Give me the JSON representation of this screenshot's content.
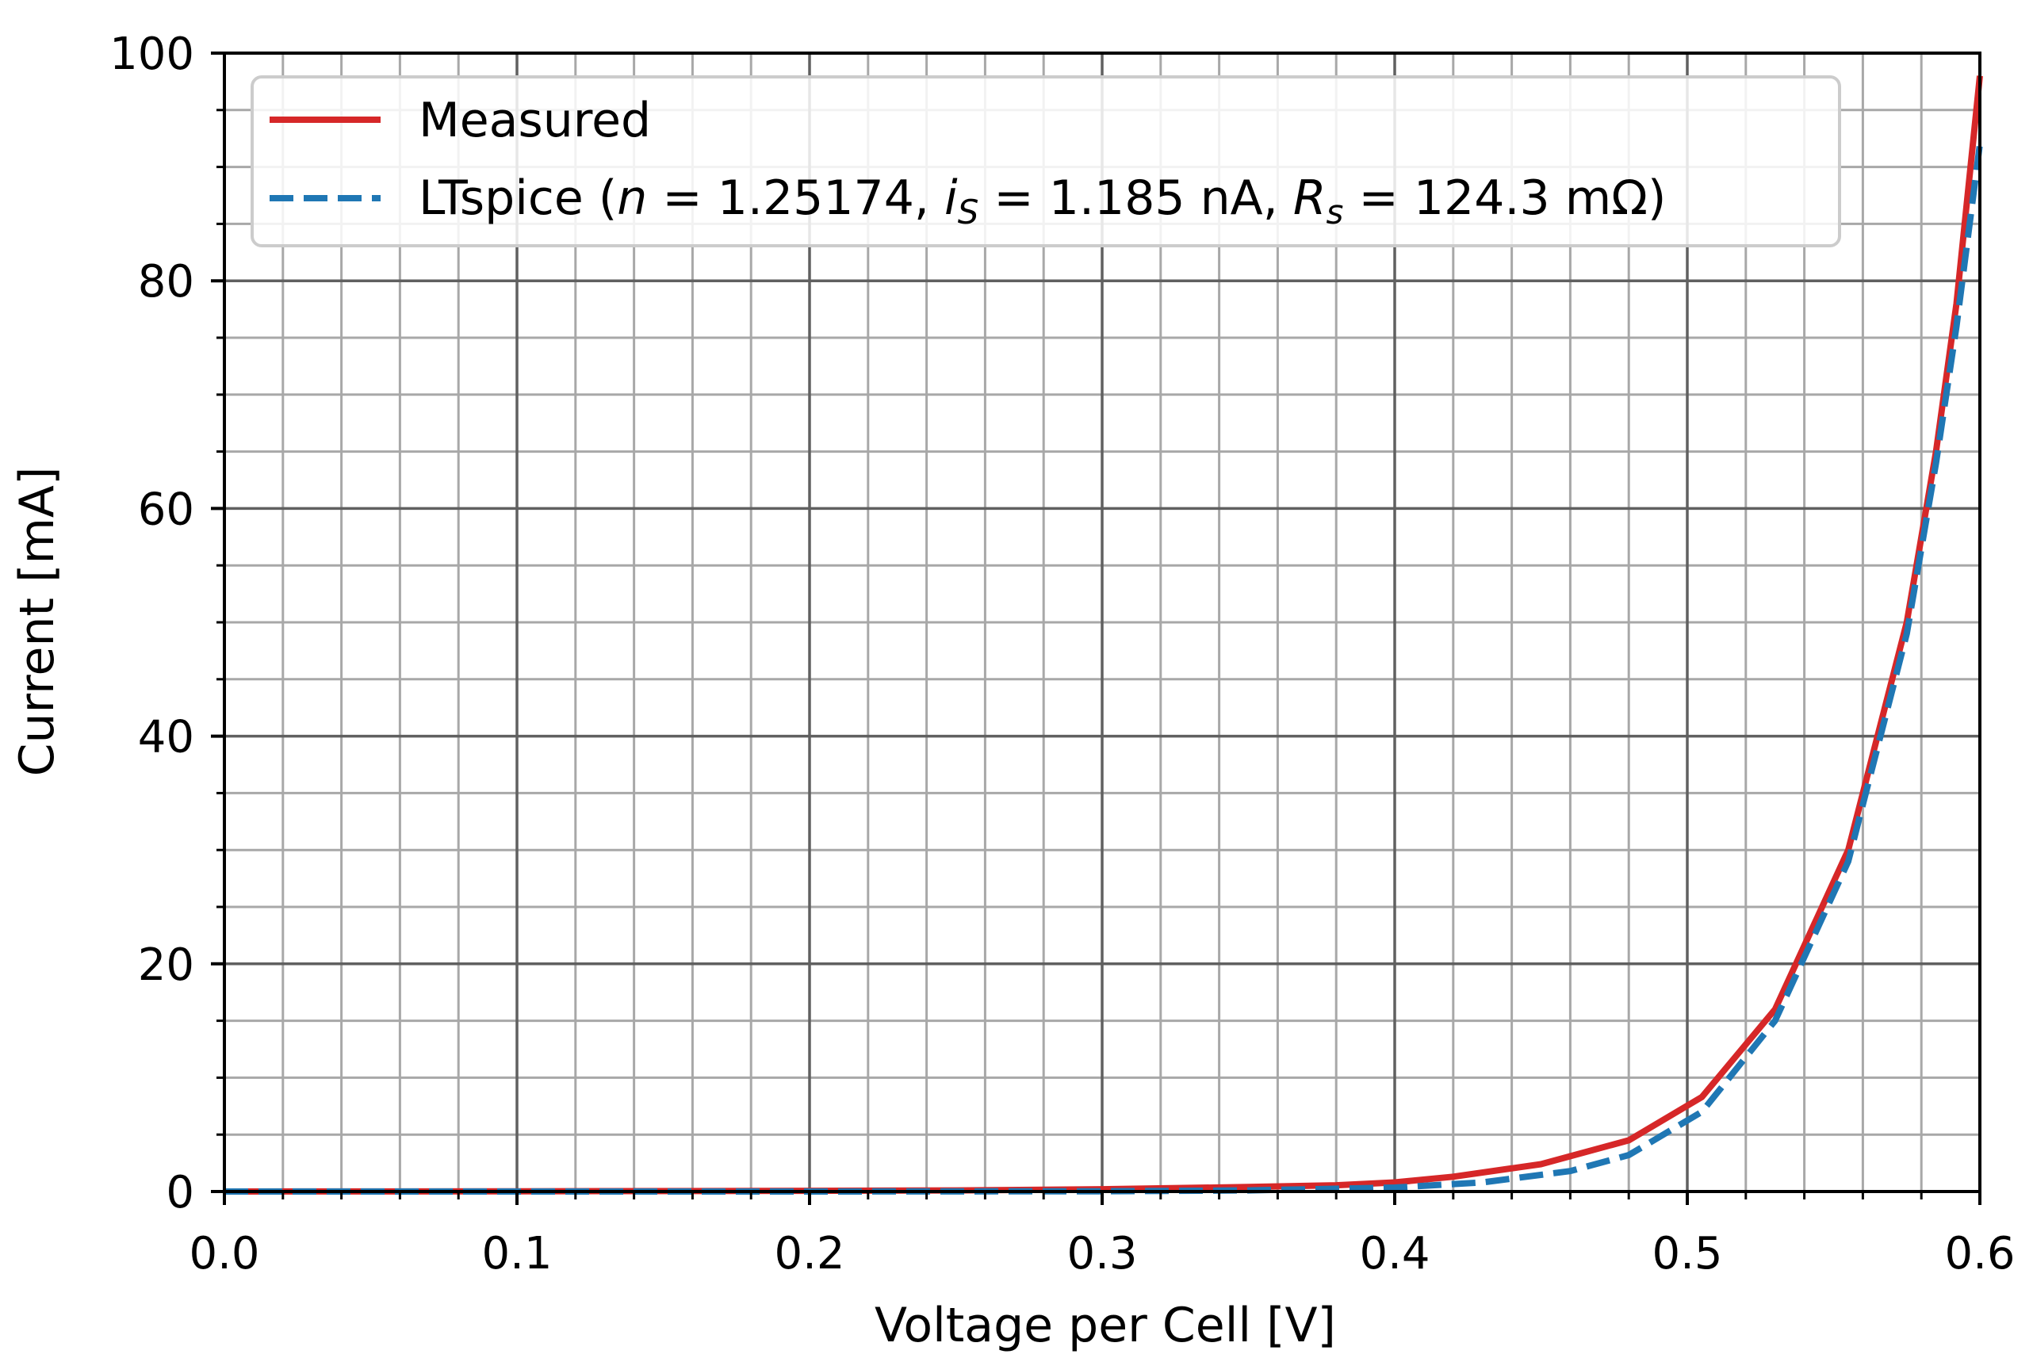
{
  "chart_data": {
    "type": "line",
    "xlabel": "Voltage per Cell [V]",
    "ylabel": "Current [mA]",
    "xlim": [
      0.0,
      0.6
    ],
    "ylim": [
      0,
      100
    ],
    "x_ticks": [
      "0.0",
      "0.1",
      "0.2",
      "0.3",
      "0.4",
      "0.5",
      "0.6"
    ],
    "y_ticks": [
      "0",
      "20",
      "40",
      "60",
      "80",
      "100"
    ],
    "grid": "major and minor",
    "legend_position": "top-left",
    "legend": {
      "measured": "Measured",
      "ltspice_prefix": "LTspice (",
      "n_symbol": "n",
      "n_value": " = 1.25174, ",
      "is_symbol": "i",
      "is_subscript": "S",
      "is_value": " = 1.185 nA, ",
      "rs_symbol": "R",
      "rs_subscript": "s",
      "rs_value": " = 124.3 mΩ)"
    },
    "series": [
      {
        "name": "Measured",
        "color": "#d62728",
        "style": "solid",
        "points": [
          [
            0.0,
            0.0
          ],
          [
            0.1,
            0.02
          ],
          [
            0.2,
            0.06
          ],
          [
            0.25,
            0.1
          ],
          [
            0.3,
            0.2
          ],
          [
            0.35,
            0.4
          ],
          [
            0.38,
            0.55
          ],
          [
            0.4,
            0.8
          ],
          [
            0.42,
            1.3
          ],
          [
            0.45,
            2.4
          ],
          [
            0.48,
            4.5
          ],
          [
            0.505,
            8.3
          ],
          [
            0.53,
            16.0
          ],
          [
            0.555,
            30.0
          ],
          [
            0.575,
            50.0
          ],
          [
            0.585,
            65.0
          ],
          [
            0.592,
            78.0
          ],
          [
            0.6,
            98.0
          ]
        ]
      },
      {
        "name": "LTspice",
        "color": "#1f77b4",
        "style": "dashed",
        "points": [
          [
            0.0,
            0.0
          ],
          [
            0.2,
            0.0
          ],
          [
            0.3,
            0.02
          ],
          [
            0.35,
            0.1
          ],
          [
            0.4,
            0.35
          ],
          [
            0.43,
            0.8
          ],
          [
            0.46,
            1.8
          ],
          [
            0.48,
            3.2
          ],
          [
            0.505,
            7.0
          ],
          [
            0.53,
            15.0
          ],
          [
            0.555,
            29.0
          ],
          [
            0.575,
            49.0
          ],
          [
            0.585,
            64.0
          ],
          [
            0.592,
            76.0
          ],
          [
            0.6,
            92.0
          ]
        ]
      }
    ]
  }
}
